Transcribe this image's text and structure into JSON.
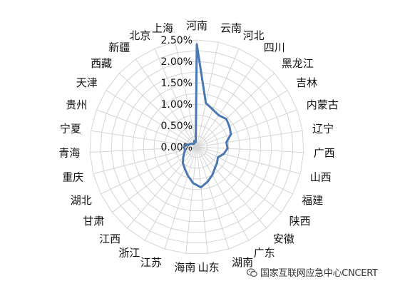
{
  "chart_data": {
    "type": "radar",
    "categories": [
      "河南",
      "云南",
      "河北",
      "四川",
      "黑龙江",
      "吉林",
      "内蒙古",
      "辽宁",
      "广西",
      "山西",
      "福建",
      "陕西",
      "安徽",
      "广东",
      "湖南",
      "山东",
      "海南",
      "江苏",
      "浙江",
      "江西",
      "甘肃",
      "湖北",
      "重庆",
      "青海",
      "宁夏",
      "贵州",
      "天津",
      "西藏",
      "新疆",
      "北京",
      "上海"
    ],
    "series": [
      {
        "values": [
          2.4,
          1.05,
          0.95,
          0.9,
          0.95,
          0.9,
          0.85,
          0.7,
          0.72,
          0.65,
          0.55,
          0.6,
          0.65,
          0.75,
          0.85,
          0.95,
          0.85,
          0.7,
          0.58,
          0.5,
          0.4,
          0.33,
          0.28,
          0.3,
          0.28,
          0.18,
          0.15,
          0.1,
          0.1,
          0.15,
          0.12
        ]
      }
    ],
    "r_ticks": [
      "0.00%",
      "0.50%",
      "1.00%",
      "1.50%",
      "2.00%",
      "2.50%"
    ],
    "r_range": [
      0,
      2.5
    ],
    "colors": {
      "series": "#4a78b4",
      "grid": "#d4d4d4"
    }
  },
  "watermark": {
    "icon": "wechat-icon",
    "text": "国家互联网应急中心CNCERT"
  }
}
